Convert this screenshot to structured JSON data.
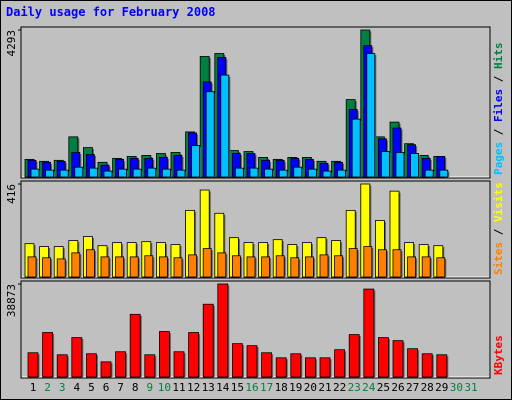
{
  "chart_data": {
    "type": "bar",
    "title": "Daily usage for February 2008",
    "categories": [
      "1",
      "2",
      "3",
      "4",
      "5",
      "6",
      "7",
      "8",
      "9",
      "10",
      "11",
      "12",
      "13",
      "14",
      "15",
      "16",
      "17",
      "18",
      "19",
      "20",
      "21",
      "22",
      "23",
      "24",
      "25",
      "26",
      "27",
      "28",
      "29",
      "30",
      "31"
    ],
    "label_colors": [
      "#000000",
      "#008040",
      "#008040",
      "#000000",
      "#000000",
      "#000000",
      "#000000",
      "#000000",
      "#008040",
      "#008040",
      "#000000",
      "#000000",
      "#000000",
      "#000000",
      "#000000",
      "#008040",
      "#008040",
      "#000000",
      "#000000",
      "#000000",
      "#000000",
      "#000000",
      "#008040",
      "#008040",
      "#000000",
      "#000000",
      "#000000",
      "#000000",
      "#000000",
      "#008040",
      "#008040"
    ],
    "legend_separator": "/",
    "panels": [
      {
        "ylim": [
          0,
          4293
        ],
        "yticks": [
          4293
        ],
        "series": [
          {
            "name": "Hits",
            "color": "#008040",
            "values": [
              515,
              458,
              487,
              1173,
              859,
              429,
              544,
              601,
              630,
              687,
              716,
              1317,
              3520,
              3606,
              773,
              744,
              572,
              515,
              572,
              572,
              458,
              458,
              2261,
              4293,
              1173,
              1603,
              973,
              630,
              601,
              0,
              0
            ]
          },
          {
            "name": "Files",
            "color": "#0000ff",
            "values": [
              487,
              429,
              458,
              716,
              658,
              343,
              515,
              544,
              544,
              572,
              630,
              1288,
              2776,
              3492,
              687,
              687,
              487,
              487,
              544,
              515,
              401,
              429,
              1975,
              3835,
              1116,
              1431,
              944,
              544,
              601,
              0,
              0
            ]
          },
          {
            "name": "Pages",
            "color": "#00c0ff",
            "values": [
              229,
              200,
              200,
              286,
              258,
              172,
              229,
              229,
              258,
              229,
              200,
              916,
              2490,
              2976,
              258,
              258,
              229,
              200,
              286,
              229,
              172,
              200,
              1689,
              3606,
              744,
              716,
              687,
              200,
              200,
              0,
              0
            ]
          }
        ]
      },
      {
        "ylim": [
          0,
          416
        ],
        "yticks": [
          416
        ],
        "series": [
          {
            "name": "Visits",
            "color": "#ffff00",
            "values": [
              149,
              136,
              136,
              163,
              181,
              140,
              154,
              154,
              158,
              154,
              145,
              298,
              389,
              285,
              176,
              154,
              154,
              167,
              145,
              154,
              176,
              163,
              298,
              416,
              253,
              384,
              154,
              145,
              140,
              0,
              0
            ]
          },
          {
            "name": "Sites",
            "color": "#ff8000",
            "values": [
              90,
              86,
              81,
              108,
              122,
              90,
              90,
              90,
              95,
              90,
              86,
              99,
              127,
              108,
              95,
              90,
              90,
              95,
              86,
              90,
              99,
              95,
              127,
              136,
              122,
              122,
              90,
              90,
              86,
              0,
              0
            ]
          }
        ]
      },
      {
        "ylim": [
          0,
          38873
        ],
        "yticks": [
          38873
        ],
        "series": [
          {
            "name": "KBytes",
            "color": "#ff0000",
            "values": [
              10140,
              18590,
              9295,
              16478,
              9718,
              6338,
              10563,
              26195,
              9295,
              19013,
              10563,
              18590,
              30420,
              38873,
              13943,
              13098,
              10140,
              8028,
              9718,
              8028,
              8028,
              11408,
              17745,
              36758,
              16478,
              15210,
              11830,
              9718,
              9295,
              0,
              0
            ]
          }
        ]
      }
    ]
  }
}
